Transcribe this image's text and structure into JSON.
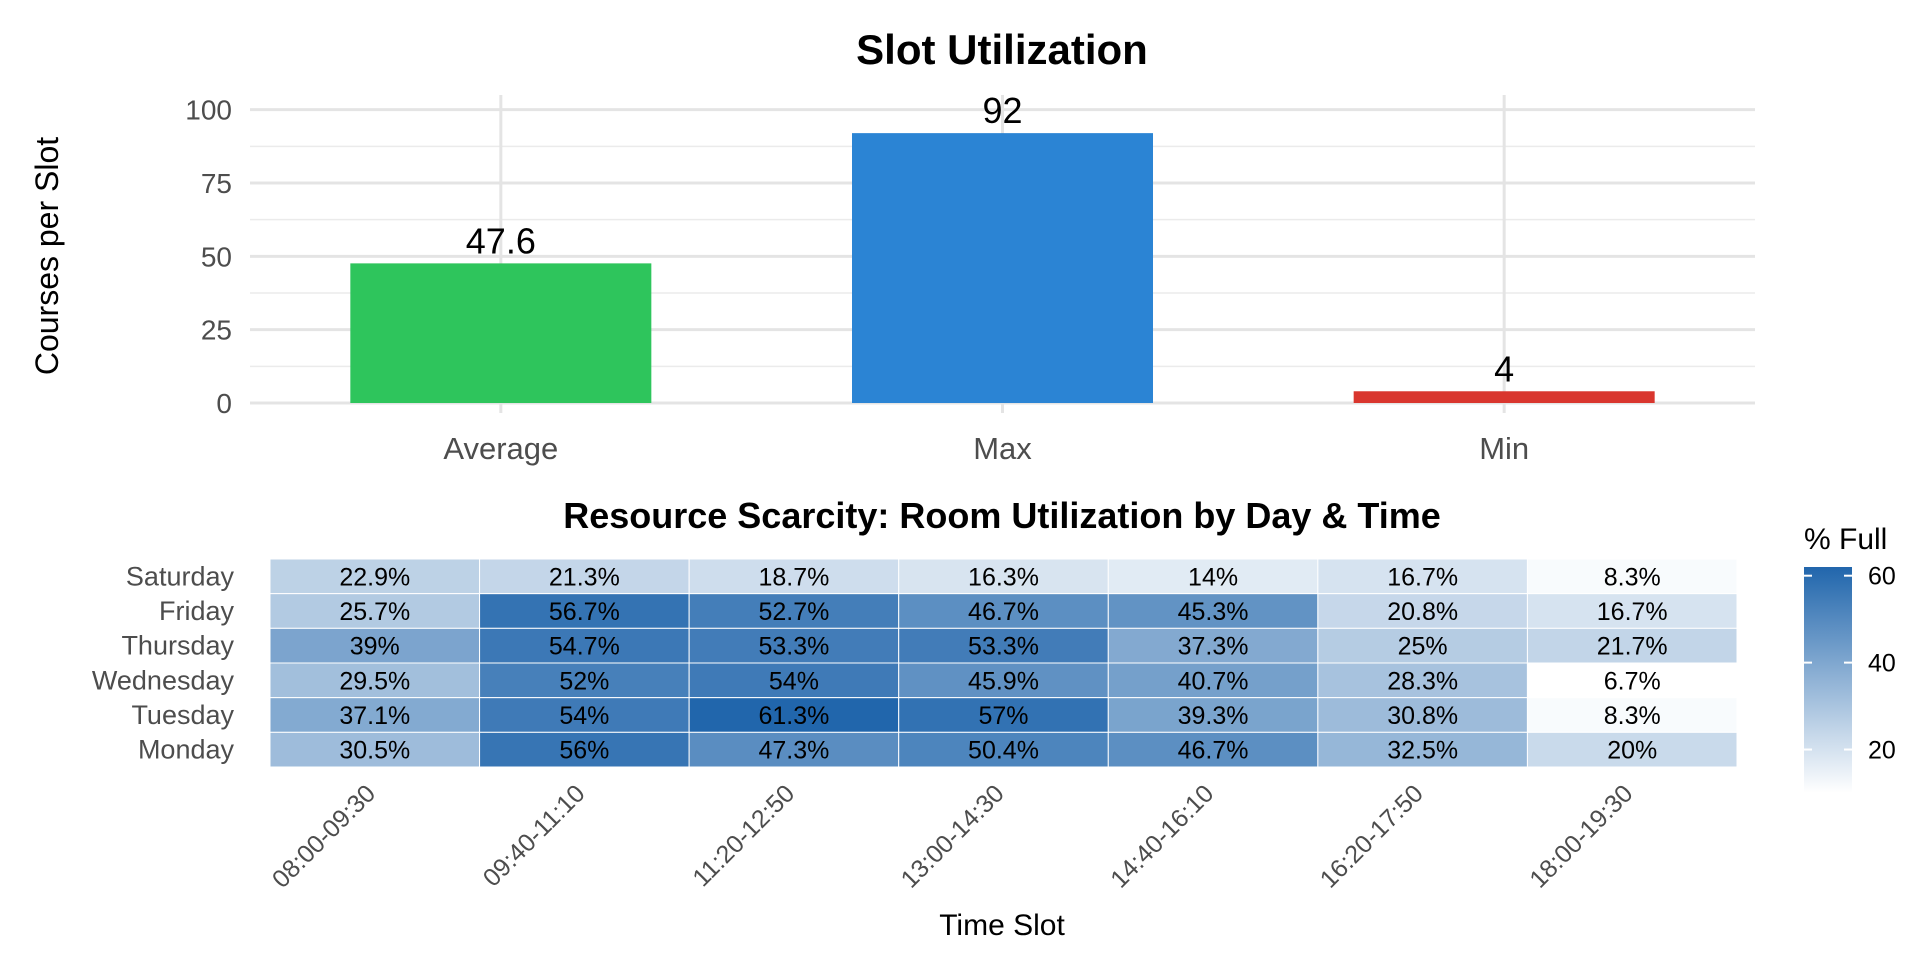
{
  "chart_data": [
    {
      "type": "bar",
      "title": "Slot Utilization",
      "xlabel": "",
      "ylabel": "Courses per Slot",
      "categories": [
        "Average",
        "Max",
        "Min"
      ],
      "values": [
        47.6,
        92,
        4
      ],
      "data_labels": [
        "47.6",
        "92",
        "4"
      ],
      "colors": [
        "#2ec55c",
        "#2b84d4",
        "#d9362e"
      ],
      "ylim": [
        0,
        105
      ],
      "yticks": [
        0,
        25,
        50,
        75,
        100
      ],
      "grid": true,
      "legend": "none"
    },
    {
      "type": "heatmap",
      "title": "Resource Scarcity: Room Utilization by Day & Time",
      "xlabel": "Time Slot",
      "ylabel": "",
      "x": [
        "08:00-09:30",
        "09:40-11:10",
        "11:20-12:50",
        "13:00-14:30",
        "14:40-16:10",
        "16:20-17:50",
        "18:00-19:30"
      ],
      "y": [
        "Saturday",
        "Friday",
        "Thursday",
        "Wednesday",
        "Tuesday",
        "Monday"
      ],
      "values": [
        [
          22.9,
          21.3,
          18.7,
          16.3,
          14,
          16.7,
          8.3
        ],
        [
          25.7,
          56.7,
          52.7,
          46.7,
          45.3,
          20.8,
          16.7
        ],
        [
          39,
          54.7,
          53.3,
          53.3,
          37.3,
          25,
          21.7
        ],
        [
          29.5,
          52,
          54,
          45.9,
          40.7,
          28.3,
          6.7
        ],
        [
          37.1,
          54,
          61.3,
          57,
          39.3,
          30.8,
          8.3
        ],
        [
          30.5,
          56,
          47.3,
          50.4,
          46.7,
          32.5,
          20
        ]
      ],
      "labels": [
        [
          "22.9%",
          "21.3%",
          "18.7%",
          "16.3%",
          "14%",
          "16.7%",
          "8.3%"
        ],
        [
          "25.7%",
          "56.7%",
          "52.7%",
          "46.7%",
          "45.3%",
          "20.8%",
          "16.7%"
        ],
        [
          "39%",
          "54.7%",
          "53.3%",
          "53.3%",
          "37.3%",
          "25%",
          "21.7%"
        ],
        [
          "29.5%",
          "52%",
          "54%",
          "45.9%",
          "40.7%",
          "28.3%",
          "6.7%"
        ],
        [
          "37.1%",
          "54%",
          "61.3%",
          "57%",
          "39.3%",
          "30.8%",
          "8.3%"
        ],
        [
          "30.5%",
          "56%",
          "47.3%",
          "50.4%",
          "46.7%",
          "32.5%",
          "20%"
        ]
      ],
      "color_scale": {
        "low": "#ffffff",
        "high": "#2166ac",
        "range": [
          6.7,
          61.3
        ]
      },
      "legend": {
        "title": "% Full",
        "ticks": [
          20,
          40,
          60
        ],
        "placement": "right"
      }
    }
  ]
}
